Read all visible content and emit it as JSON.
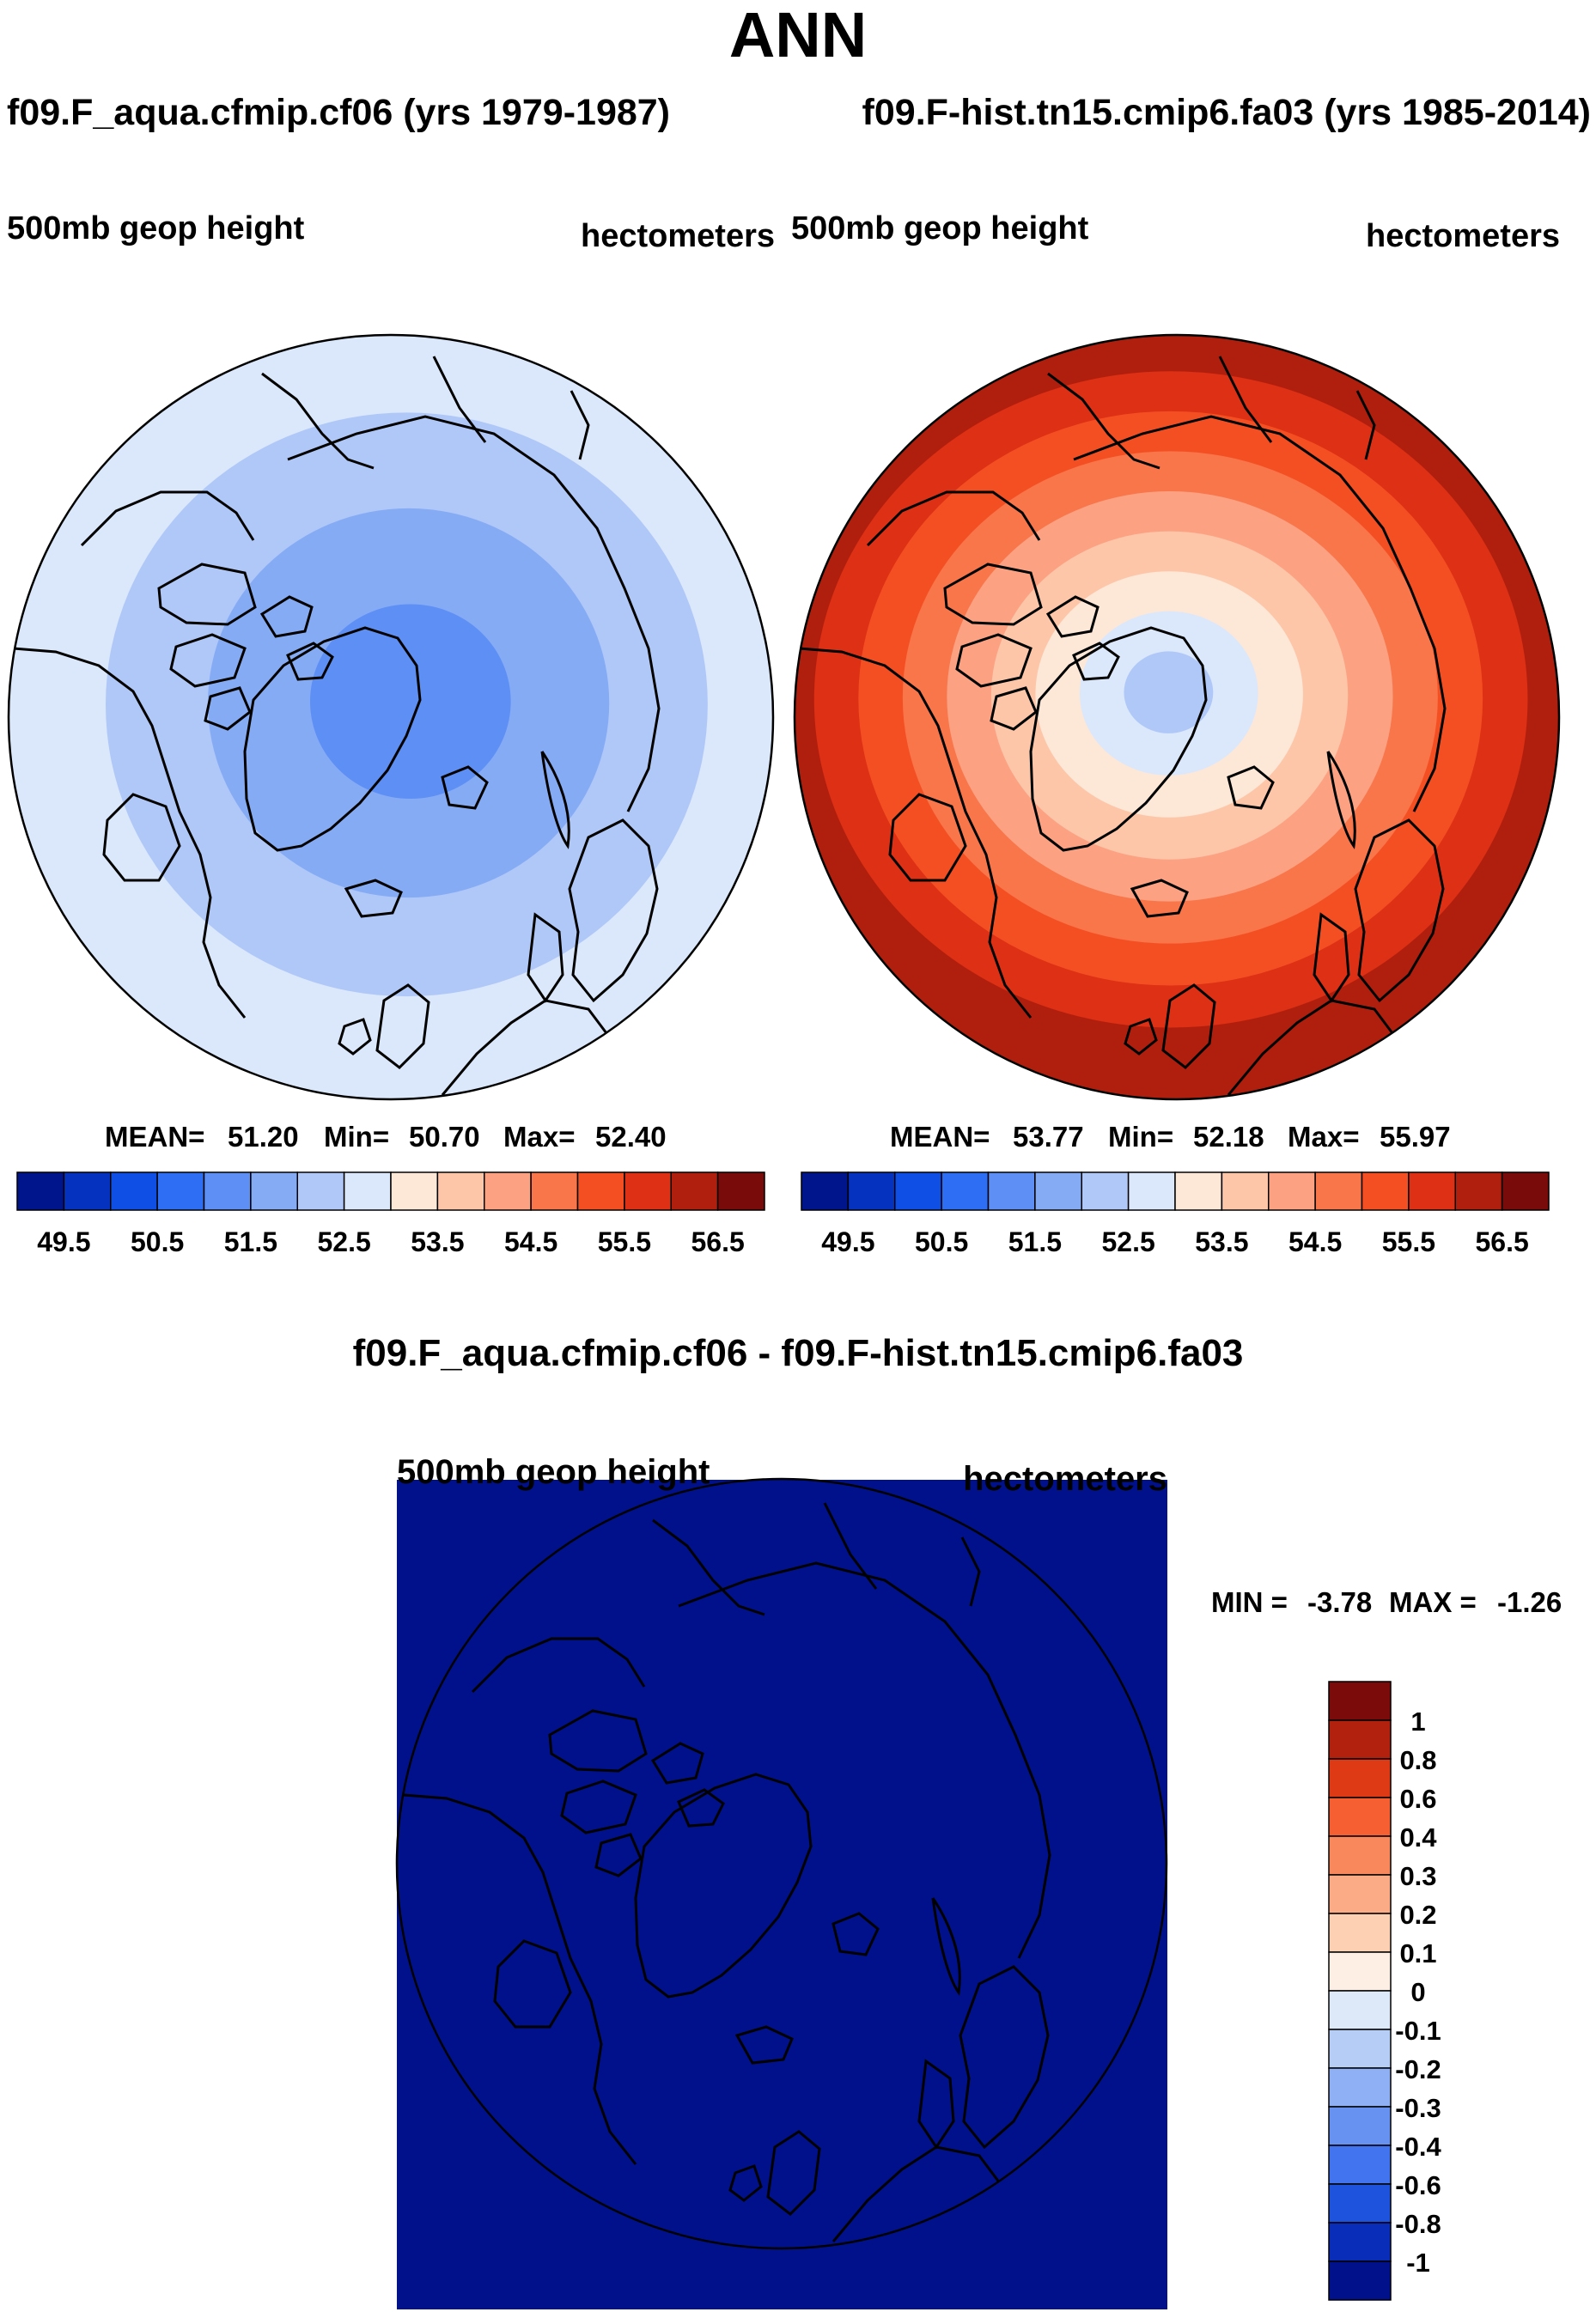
{
  "title": "ANN",
  "panels": [
    {
      "case_title": "f09.F_aqua.cfmip.cf06 (yrs 1979-1987)",
      "variable": "500mb geop height",
      "units": "hectometers",
      "stats": {
        "mean_label": "MEAN=",
        "mean": "51.20",
        "min_label": "Min=",
        "min": "50.70",
        "max_label": "Max=",
        "max": "52.40"
      }
    },
    {
      "case_title": "f09.F-hist.tn15.cmip6.fa03 (yrs 1985-2014)",
      "variable": "500mb geop height",
      "units": "hectometers",
      "stats": {
        "mean_label": "MEAN=",
        "mean": "53.77",
        "min_label": "Min=",
        "min": "52.18",
        "max_label": "Max=",
        "max": "55.97"
      }
    }
  ],
  "abs_colorbar": {
    "labels": [
      "49.5",
      "50.5",
      "51.5",
      "52.5",
      "53.5",
      "54.5",
      "55.5",
      "56.5"
    ],
    "colors": [
      "#00148c",
      "#0532be",
      "#0f4fe6",
      "#2d6ef5",
      "#5d8ff5",
      "#86abf5",
      "#b0c8f8",
      "#dbe8fb",
      "#fde7d7",
      "#fdc6a8",
      "#fca282",
      "#f9754a",
      "#f44f22",
      "#dd3015",
      "#b01f0e",
      "#7a0b0b"
    ]
  },
  "diff_panel": {
    "title": "f09.F_aqua.cfmip.cf06 - f09.F-hist.tn15.cmip6.fa03",
    "variable": "500mb geop height",
    "units": "hectometers",
    "min_label": "MIN =",
    "min": "-3.78",
    "max_label": "MAX =",
    "max": "-1.26",
    "fill_color": "#00118b"
  },
  "diff_colorbar": {
    "labels": [
      "1",
      "0.8",
      "0.6",
      "0.4",
      "0.3",
      "0.2",
      "0.1",
      "0",
      "-0.1",
      "-0.2",
      "-0.3",
      "-0.4",
      "-0.6",
      "-0.8",
      "-1"
    ],
    "colors": [
      "#7b0a0a",
      "#b2200e",
      "#de3a16",
      "#f65f32",
      "#f9885d",
      "#fbab85",
      "#fdd0b3",
      "#fdefe3",
      "#dde9f9",
      "#b6cdf6",
      "#8fb0f4",
      "#6892f2",
      "#4174ee",
      "#1e53de",
      "#0a2db9",
      "#00118b"
    ]
  },
  "chart_data": [
    {
      "type": "heatmap",
      "title": "f09.F_aqua.cfmip.cf06 (yrs 1979-1987)",
      "variable": "500mb geop height",
      "units": "hectometers",
      "projection": "north polar stereographic",
      "levels": [
        49.5,
        50,
        50.5,
        51,
        51.5,
        52,
        52.5,
        53,
        53.5,
        54,
        54.5,
        55,
        55.5,
        56,
        56.5
      ],
      "mean": 51.2,
      "min": 50.7,
      "max": 52.4,
      "bands_from_pole_outward": [
        51.25,
        51.75,
        52.25,
        52.75
      ]
    },
    {
      "type": "heatmap",
      "title": "f09.F-hist.tn15.cmip6.fa03 (yrs 1985-2014)",
      "variable": "500mb geop height",
      "units": "hectometers",
      "projection": "north polar stereographic",
      "levels": [
        49.5,
        50,
        50.5,
        51,
        51.5,
        52,
        52.5,
        53,
        53.5,
        54,
        54.5,
        55,
        55.5,
        56,
        56.5
      ],
      "mean": 53.77,
      "min": 52.18,
      "max": 55.97,
      "bands_from_pole_outward": [
        52.25,
        52.75,
        53.25,
        53.75,
        54.25,
        54.75,
        55.25,
        55.75,
        56.25
      ]
    },
    {
      "type": "heatmap",
      "title": "f09.F_aqua.cfmip.cf06 - f09.F-hist.tn15.cmip6.fa03",
      "variable": "500mb geop height",
      "units": "hectometers",
      "projection": "north polar stereographic",
      "levels": [
        -1,
        -0.8,
        -0.6,
        -0.4,
        -0.3,
        -0.2,
        -0.1,
        0,
        0.1,
        0.2,
        0.3,
        0.4,
        0.6,
        0.8,
        1
      ],
      "min": -3.78,
      "max": -1.26
    }
  ]
}
